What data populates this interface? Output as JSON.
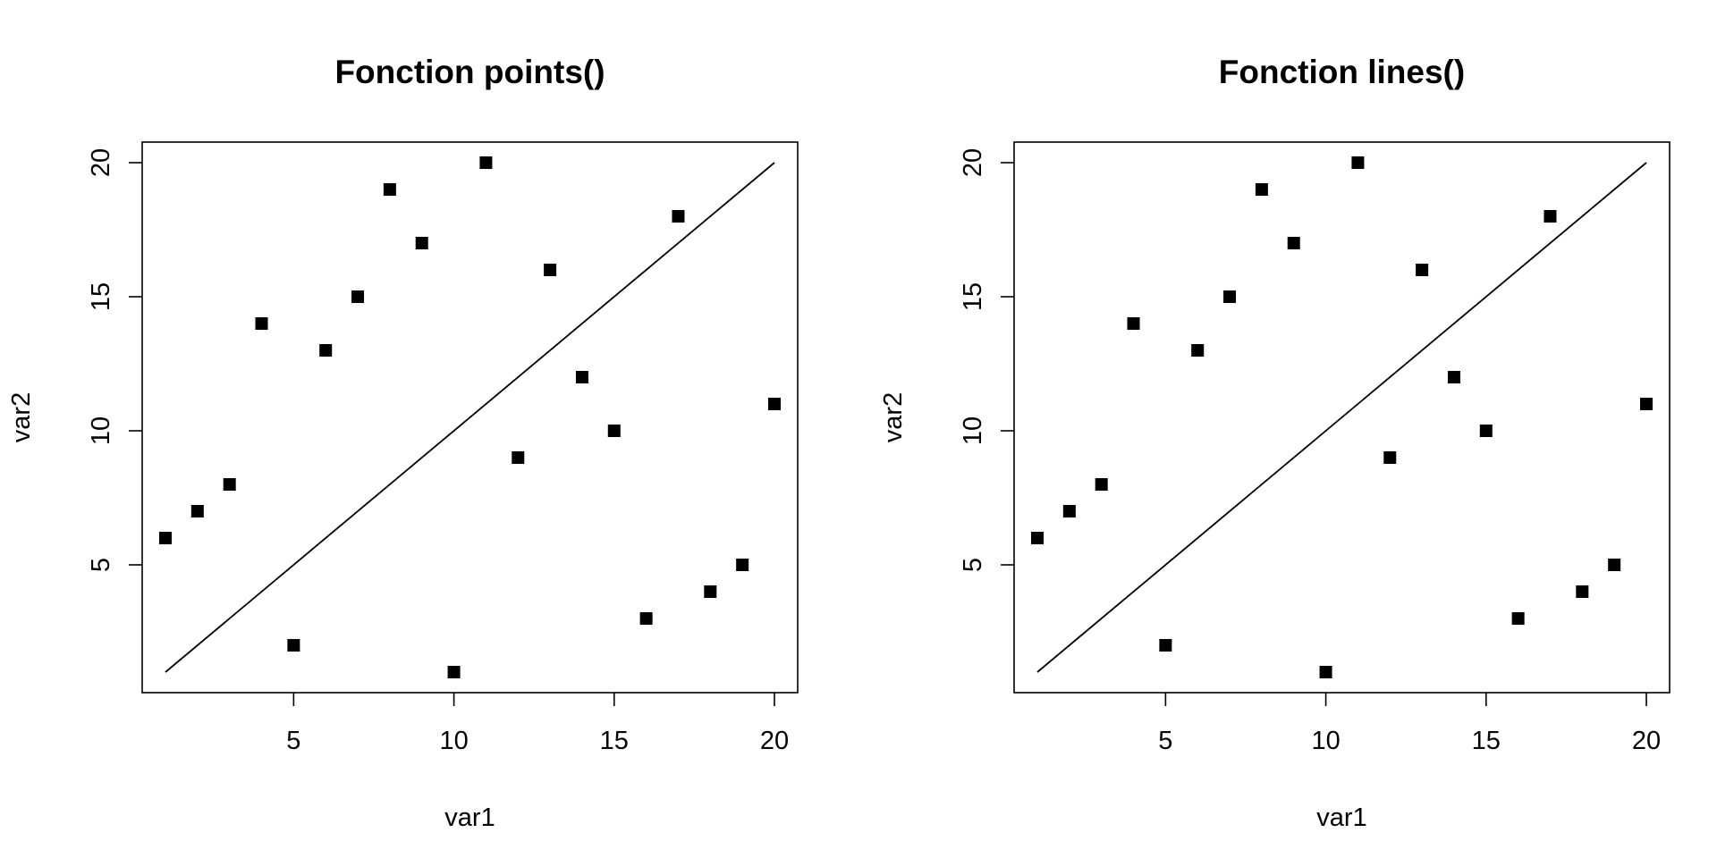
{
  "chart_data": [
    {
      "type": "scatter",
      "title": "Fonction points()",
      "xlabel": "var1",
      "ylabel": "var2",
      "xlim": [
        1,
        20
      ],
      "ylim": [
        1,
        20
      ],
      "xticks": [
        5,
        10,
        15,
        20
      ],
      "yticks": [
        5,
        10,
        15,
        20
      ],
      "marker": "filled-square",
      "series": [
        {
          "x": [
            1,
            2,
            3,
            4,
            5,
            6,
            7,
            8,
            9,
            10,
            11,
            12,
            13,
            14,
            15,
            16,
            17,
            18,
            19,
            20
          ],
          "y": [
            6,
            7,
            8,
            14,
            2,
            13,
            15,
            19,
            17,
            1,
            20,
            9,
            16,
            12,
            10,
            3,
            18,
            4,
            5,
            11
          ]
        }
      ],
      "reference_line": {
        "x": [
          1,
          20
        ],
        "y": [
          1,
          20
        ]
      }
    },
    {
      "type": "scatter",
      "title": "Fonction lines()",
      "xlabel": "var1",
      "ylabel": "var2",
      "xlim": [
        1,
        20
      ],
      "ylim": [
        1,
        20
      ],
      "xticks": [
        5,
        10,
        15,
        20
      ],
      "yticks": [
        5,
        10,
        15,
        20
      ],
      "marker": "filled-square",
      "series": [
        {
          "x": [
            1,
            2,
            3,
            4,
            5,
            6,
            7,
            8,
            9,
            10,
            11,
            12,
            13,
            14,
            15,
            16,
            17,
            18,
            19,
            20
          ],
          "y": [
            6,
            7,
            8,
            14,
            2,
            13,
            15,
            19,
            17,
            1,
            20,
            9,
            16,
            12,
            10,
            3,
            18,
            4,
            5,
            11
          ]
        }
      ],
      "reference_line": {
        "x": [
          1,
          20
        ],
        "y": [
          1,
          20
        ]
      }
    }
  ]
}
